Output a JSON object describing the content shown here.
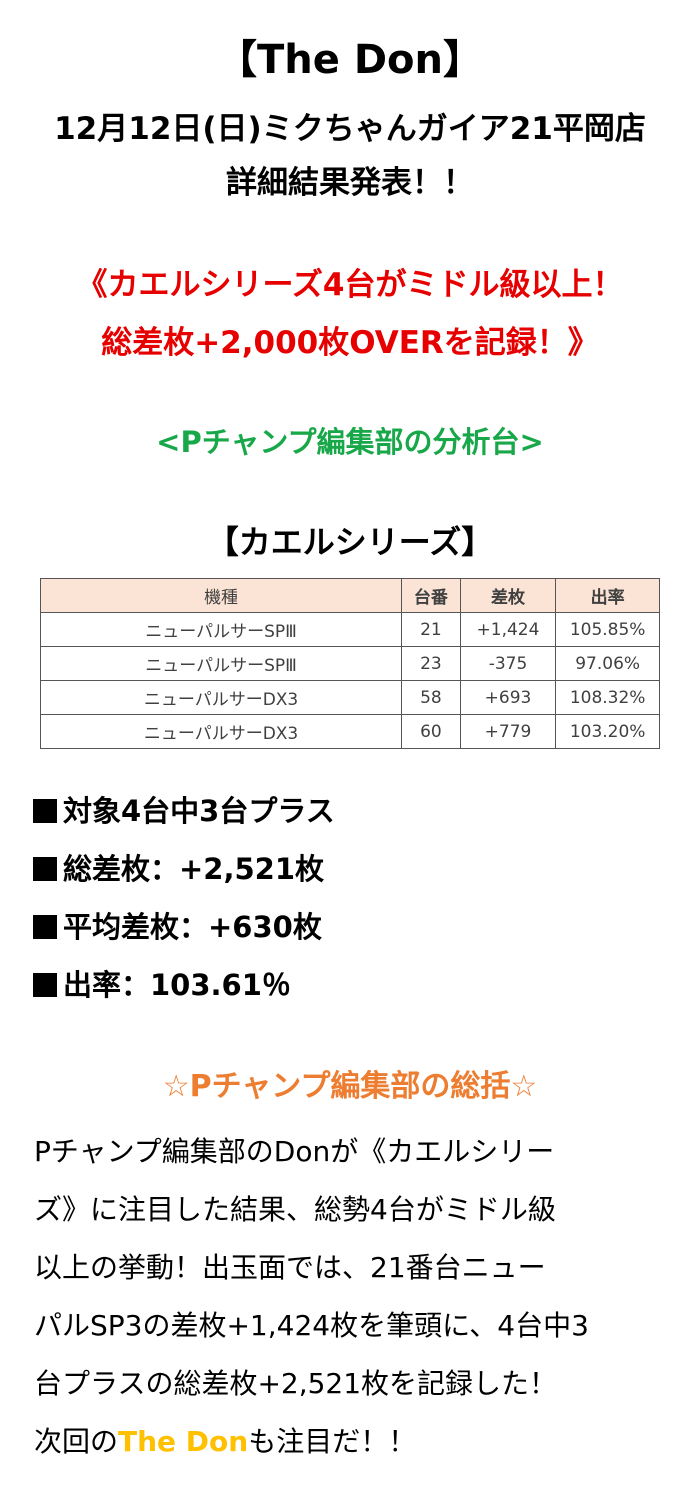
{
  "header": {
    "title": "【The Don】",
    "subtitle_line1": "12月12日(日)ミクちゃんガイア21平岡店",
    "subtitle_line2": "詳細結果発表！！"
  },
  "headline": {
    "line1": "《カエルシリーズ4台がミドル級以上！",
    "line2": "総差枚+2,000枚OVERを記録！》"
  },
  "analysis_label": "<Pチャンプ編集部の分析台>",
  "table": {
    "title": "【カエルシリーズ】",
    "headers": [
      "機種",
      "台番",
      "差枚",
      "出率"
    ],
    "rows": [
      [
        "ニューパルサーSPⅢ",
        "21",
        "+1,424",
        "105.85%"
      ],
      [
        "ニューパルサーSPⅢ",
        "23",
        "-375",
        "97.06%"
      ],
      [
        "ニューパルサーDX3",
        "58",
        "+693",
        "108.32%"
      ],
      [
        "ニューパルサーDX3",
        "60",
        "+779",
        "103.20%"
      ]
    ]
  },
  "stats": [
    "対象4台中3台プラス",
    "総差枚：+2,521枚",
    "平均差枚：+630枚",
    "出率：103.61％"
  ],
  "summary": {
    "heading": "☆Pチャンプ編集部の総括☆",
    "lines": [
      "Pチャンプ編集部のDonが《カエルシリー",
      "ズ》に注目した結果、総勢4台がミドル級",
      "以上の挙動！出玉面では、21番台ニュー",
      "パルSP3の差枚+1,424枚を筆頭に、4台中3",
      "台プラスの総差枚+2,521枚を記録した！"
    ],
    "last_prefix": "次回の",
    "last_highlight": "The Don",
    "last_suffix": "も注目だ！！",
    "highlight_color": "#ffc000"
  }
}
